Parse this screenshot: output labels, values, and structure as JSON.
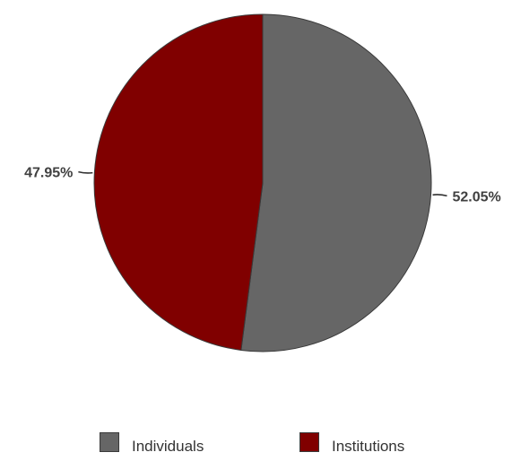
{
  "chart_data": {
    "type": "pie",
    "title": "",
    "categories": [
      "Individuals",
      "Institutions"
    ],
    "values": [
      52.05,
      47.95
    ],
    "labels": [
      "52.05%",
      "47.95%"
    ],
    "colors": [
      "#666666",
      "#800000"
    ],
    "start_angle_deg": 0,
    "direction": "clockwise",
    "legend_position": "bottom"
  }
}
